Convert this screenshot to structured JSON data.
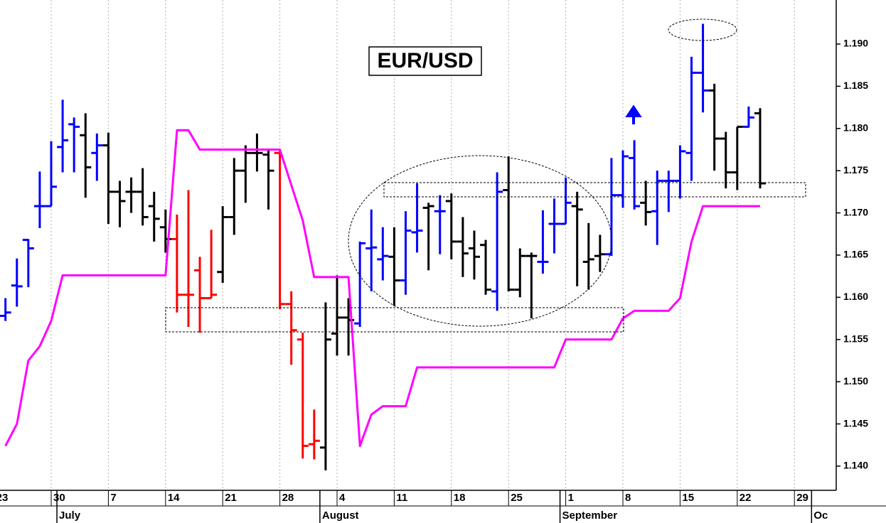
{
  "chart_data": {
    "type": "ohlc",
    "title": "EUR/USD",
    "x": [
      "06-23",
      "06-24",
      "06-25",
      "06-26",
      "06-27",
      "06-30",
      "07-01",
      "07-02",
      "07-03",
      "07-04",
      "07-07",
      "07-08",
      "07-09",
      "07-10",
      "07-11",
      "07-14",
      "07-15",
      "07-16",
      "07-17",
      "07-18",
      "07-21",
      "07-22",
      "07-23",
      "07-24",
      "07-25",
      "07-28",
      "07-29",
      "07-30",
      "07-31",
      "08-01",
      "08-04",
      "08-05",
      "08-06",
      "08-07",
      "08-08",
      "08-11",
      "08-12",
      "08-13",
      "08-14",
      "08-15",
      "08-18",
      "08-19",
      "08-20",
      "08-21",
      "08-22",
      "08-25",
      "08-26",
      "08-27",
      "08-28",
      "08-29",
      "09-01",
      "09-02",
      "09-03",
      "09-04",
      "09-05",
      "09-08",
      "09-09",
      "09-10",
      "09-11",
      "09-12",
      "09-15",
      "09-16",
      "09-17",
      "09-18",
      "09-19",
      "09-22",
      "09-23",
      "09-24",
      "09-25",
      "09-26",
      "09-29",
      "09-30",
      "10-01",
      "10-02",
      "10-03"
    ],
    "xticks": [
      {
        "value": "06-23",
        "label": "23"
      },
      {
        "value": "06-30",
        "label": "30"
      },
      {
        "value": "07-07",
        "label": "7"
      },
      {
        "value": "07-14",
        "label": "14"
      },
      {
        "value": "07-21",
        "label": "21"
      },
      {
        "value": "07-28",
        "label": "28"
      },
      {
        "value": "08-04",
        "label": "4"
      },
      {
        "value": "08-11",
        "label": "11"
      },
      {
        "value": "08-18",
        "label": "18"
      },
      {
        "value": "08-25",
        "label": "25"
      },
      {
        "value": "09-01",
        "label": "1"
      },
      {
        "value": "09-08",
        "label": "8"
      },
      {
        "value": "09-15",
        "label": "15"
      },
      {
        "value": "09-22",
        "label": "22"
      },
      {
        "value": "09-29",
        "label": "29"
      }
    ],
    "months": [
      {
        "value": "07-01",
        "label": "July"
      },
      {
        "value": "08-01",
        "label": "August"
      },
      {
        "value": "09-01",
        "label": "September"
      },
      {
        "value": "10-01",
        "label": "Oc"
      }
    ],
    "xgrid": true,
    "ylim": [
      1.137,
      1.195
    ],
    "yticks": [
      {
        "value": 1.14,
        "label": "1.140"
      },
      1.145,
      {
        "value": 1.15,
        "label": "1.150"
      },
      1.155,
      {
        "value": 1.16,
        "label": "1.160"
      },
      1.165,
      {
        "value": 1.17,
        "label": "1.170"
      },
      1.175,
      {
        "value": 1.18,
        "label": "1.180"
      },
      1.185,
      {
        "value": 1.19,
        "label": "1.190"
      }
    ],
    "ohlc": {
      "open": [
        null,
        1.1578,
        1.1614,
        1.1668,
        1.1708,
        1.1708,
        1.1778,
        1.1805,
        1.1792,
        1.1771,
        1.178,
        1.1725,
        1.1725,
        1.1725,
        1.1708,
        1.1683,
        1.1669,
        1.1603,
        1.1632,
        1.1599,
        1.163,
        1.1695,
        1.175,
        1.1771,
        1.1769,
        1.1771,
        1.1592,
        1.155,
        1.1426,
        1.1422,
        1.1557,
        1.1576,
        1.1569,
        1.1658,
        1.1645,
        1.1648,
        1.162,
        1.1677,
        1.1706,
        1.1702,
        1.1714,
        1.1666,
        1.1658,
        1.1662,
        1.1607,
        1.1727,
        1.1609,
        1.1649,
        1.1642,
        1.1687,
        1.1687,
        1.1708,
        1.1642,
        1.1649,
        1.1651,
        1.1721,
        1.1765,
        1.1712,
        1.1702,
        1.1738,
        1.1738,
        1.1771,
        1.1866,
        1.1845,
        1.1788,
        1.1748,
        1.1802,
        1.1818,
        null,
        null,
        null,
        null,
        null,
        null,
        null
      ],
      "high": [
        null,
        1.1599,
        1.1646,
        1.1669,
        1.1749,
        1.1785,
        1.1834,
        1.1813,
        1.1818,
        1.1794,
        1.1795,
        1.1738,
        1.1742,
        1.1753,
        1.1725,
        1.1704,
        1.1698,
        1.1727,
        1.1648,
        1.168,
        1.1708,
        1.1765,
        1.178,
        1.1794,
        1.1774,
        1.1774,
        1.1607,
        1.1558,
        1.1467,
        1.1594,
        1.1626,
        1.1599,
        1.1666,
        1.1704,
        1.1683,
        1.1683,
        1.1702,
        1.1735,
        1.1712,
        1.1721,
        1.1723,
        1.1695,
        1.1679,
        1.1668,
        1.1748,
        1.1767,
        1.1658,
        1.1653,
        1.1703,
        1.1717,
        1.1742,
        1.1725,
        1.1688,
        1.1674,
        1.1765,
        1.1774,
        1.1786,
        1.1738,
        1.175,
        1.175,
        1.178,
        1.1885,
        1.1924,
        1.1853,
        1.1796,
        1.1802,
        1.1826,
        1.1824,
        null,
        null,
        null,
        null,
        null,
        null,
        null
      ],
      "low": [
        null,
        1.1572,
        1.1589,
        1.1612,
        1.1682,
        1.1708,
        1.1748,
        1.1748,
        1.1718,
        1.1738,
        1.1687,
        1.1683,
        1.17,
        1.1685,
        1.1666,
        1.1653,
        1.1582,
        1.1565,
        1.1558,
        1.1599,
        1.1617,
        1.1674,
        1.1712,
        1.1749,
        1.1704,
        1.1586,
        1.152,
        1.1409,
        1.1408,
        1.1395,
        1.1531,
        1.1531,
        1.1565,
        1.1607,
        1.162,
        1.159,
        1.1603,
        1.1653,
        1.1632,
        1.1651,
        1.1645,
        1.1624,
        1.1621,
        1.1603,
        1.1584,
        1.1607,
        1.16,
        1.1575,
        1.1628,
        1.1652,
        1.1687,
        1.1613,
        1.1609,
        1.163,
        1.1649,
        1.1706,
        1.1704,
        1.1685,
        1.1662,
        1.1701,
        1.1717,
        1.1738,
        1.1819,
        1.175,
        1.1729,
        1.1727,
        1.1801,
        1.1729,
        null,
        null,
        null,
        null,
        null,
        null,
        null
      ],
      "close": [
        null,
        1.1582,
        1.1613,
        1.1658,
        1.1708,
        1.1731,
        1.1786,
        1.1802,
        1.1754,
        1.178,
        1.1725,
        1.1714,
        1.1725,
        1.1695,
        1.1693,
        1.1669,
        1.1603,
        1.1603,
        1.1599,
        1.1603,
        1.1695,
        1.175,
        1.1771,
        1.1771,
        1.175,
        1.1592,
        1.1561,
        1.1424,
        1.143,
        1.155,
        1.1576,
        1.1573,
        1.1664,
        1.1659,
        1.1649,
        1.162,
        1.1679,
        1.1679,
        1.1708,
        1.1702,
        1.1666,
        1.1652,
        1.1648,
        1.1609,
        1.1725,
        1.1609,
        1.1649,
        1.1649,
        1.1642,
        1.1687,
        1.1712,
        1.1704,
        1.1645,
        1.1651,
        1.1721,
        1.1767,
        1.1708,
        1.1701,
        1.1738,
        1.1738,
        1.1773,
        1.1866,
        1.1845,
        1.1788,
        1.1748,
        1.1802,
        1.1813,
        1.1735,
        null,
        null,
        null,
        null,
        null,
        null,
        null
      ],
      "colors": [
        null,
        "#0000ff",
        "#0000ff",
        "#0000ff",
        "#0000ff",
        "#0000ff",
        "#0000ff",
        "#0000ff",
        "#000000",
        "#0000ff",
        "#000000",
        "#000000",
        "#000000",
        "#000000",
        "#000000",
        "#000000",
        "#ff0000",
        "#ff0000",
        "#ff0000",
        "#ff0000",
        "#000000",
        "#000000",
        "#000000",
        "#000000",
        "#000000",
        "#ff0000",
        "#ff0000",
        "#ff0000",
        "#ff0000",
        "#000000",
        "#000000",
        "#000000",
        "#0000ff",
        "#0000ff",
        "#0000ff",
        "#000000",
        "#0000ff",
        "#0000ff",
        "#000000",
        "#0000ff",
        "#000000",
        "#000000",
        "#000000",
        "#000000",
        "#0000ff",
        "#000000",
        "#000000",
        "#000000",
        "#0000ff",
        "#0000ff",
        "#0000ff",
        "#000000",
        "#000000",
        "#000000",
        "#0000ff",
        "#0000ff",
        "#0000ff",
        "#000000",
        "#0000ff",
        "#0000ff",
        "#0000ff",
        "#0000ff",
        "#0000ff",
        "#000000",
        "#000000",
        "#000000",
        "#0000ff",
        "#000000",
        null,
        null,
        null,
        null,
        null,
        null,
        null
      ]
    },
    "line": {
      "color": "#ff00ff",
      "values": [
        null,
        1.1424,
        1.145,
        1.1525,
        1.1542,
        1.1572,
        1.1626,
        1.1626,
        1.1626,
        1.1626,
        1.1626,
        1.1626,
        1.1626,
        1.1626,
        1.1626,
        1.1626,
        1.1798,
        1.1798,
        1.1775,
        1.1775,
        1.1775,
        1.1775,
        1.1775,
        1.1775,
        1.1775,
        1.1775,
        1.1733,
        1.1691,
        1.1624,
        1.1624,
        1.1624,
        1.1624,
        1.1424,
        1.1461,
        1.1471,
        1.1471,
        1.1471,
        1.1517,
        1.1517,
        1.1517,
        1.1517,
        1.1517,
        1.1517,
        1.1517,
        1.1517,
        1.1517,
        1.1517,
        1.1517,
        1.1517,
        1.1517,
        1.155,
        1.155,
        1.155,
        1.155,
        1.155,
        1.1575,
        1.1584,
        1.1584,
        1.1584,
        1.1584,
        1.1599,
        1.1666,
        1.1708,
        1.1708,
        1.1708,
        1.1708,
        1.1708,
        1.1708,
        null,
        null,
        null,
        null,
        null,
        null,
        null
      ]
    }
  }
}
